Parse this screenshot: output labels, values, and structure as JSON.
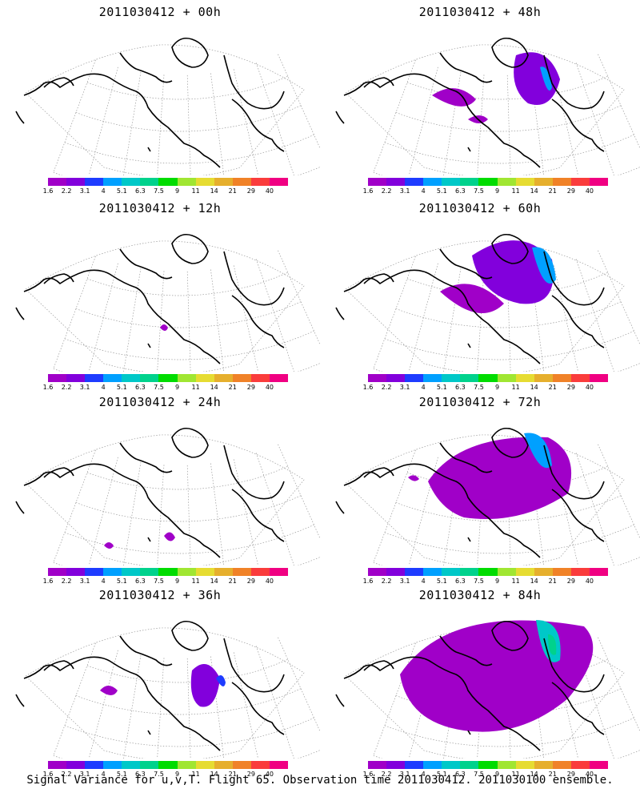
{
  "panels": [
    {
      "title": "2011030412 + 00h",
      "level": 0
    },
    {
      "title": "2011030412 + 48h",
      "level": 4
    },
    {
      "title": "2011030412 + 12h",
      "level": 1
    },
    {
      "title": "2011030412 + 60h",
      "level": 5
    },
    {
      "title": "2011030412 + 24h",
      "level": 2
    },
    {
      "title": "2011030412 + 72h",
      "level": 6
    },
    {
      "title": "2011030412 + 36h",
      "level": 3
    },
    {
      "title": "2011030412 + 84h",
      "level": 7
    }
  ],
  "legend": {
    "colors": [
      "#a000c8",
      "#8200dc",
      "#1e3cff",
      "#00a0ff",
      "#00c8c8",
      "#00d28c",
      "#00dc00",
      "#a0e632",
      "#e6dc32",
      "#e6af2d",
      "#f08228",
      "#fa3c3c",
      "#f00082"
    ],
    "labels": [
      "1.6",
      "2.2",
      "3.1",
      "4",
      "5.1",
      "6.3",
      "7.5",
      "9",
      "11",
      "14",
      "21",
      "29",
      "40"
    ]
  },
  "footer": "Signal Variance for u,v,T. Flight 65. Observation time 2011030412. 2011030100 ensemble."
}
